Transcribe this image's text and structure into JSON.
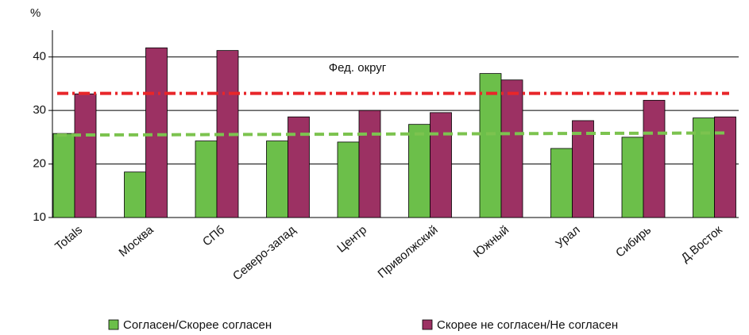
{
  "chart_data": {
    "type": "bar",
    "y_label": "%",
    "categories": [
      "Totals",
      "Москва",
      "СПб",
      "Северо-запад",
      "Центр",
      "Приволжский",
      "Южный",
      "Урал",
      "Сибирь",
      "Д.Восток"
    ],
    "series": [
      {
        "name": "Согласен/Скорее согласен",
        "color": "#6cbf4a",
        "values": [
          25.7,
          18.5,
          24.3,
          24.3,
          24.1,
          27.4,
          36.9,
          22.9,
          25.0,
          28.6
        ]
      },
      {
        "name": "Скорее не согласен/Не согласен",
        "color": "#9c3163",
        "values": [
          33.1,
          41.7,
          41.2,
          28.8,
          30.0,
          29.6,
          35.7,
          28.1,
          31.9,
          28.8
        ]
      }
    ],
    "reference_lines": [
      {
        "from": 33.2,
        "to": 33.2,
        "color": "#e8262a",
        "style": "dashdot"
      },
      {
        "from": 25.4,
        "to": 25.8,
        "color": "#7cc34f",
        "style": "dashed"
      }
    ],
    "annotation": "Фед. округ",
    "ylim": [
      10,
      45
    ],
    "yticks": [
      10,
      20,
      30,
      40
    ],
    "grid": true,
    "legend": "bottom"
  }
}
